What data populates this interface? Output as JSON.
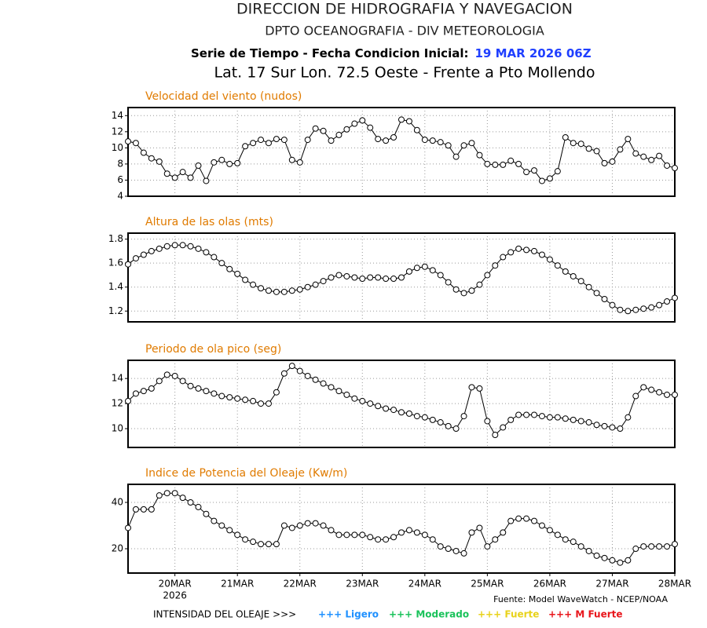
{
  "header": {
    "line1": "DIRECCION DE HIDROGRAFIA Y NAVEGACION",
    "line2": "DPTO OCEANOGRAFIA - DIV METEOROLOGIA",
    "line3_label": "Serie de Tiempo - Fecha Condicion Inicial:",
    "line3_date": "19 MAR 2026 06Z",
    "line3_date_color": "#1f3fff",
    "line4": "Lat. 17 Sur  Lon. 72.5 Oeste - Frente a Pto Mollendo"
  },
  "chart_data": [
    {
      "type": "line",
      "title": "Velocidad del viento (nudos)",
      "title_color": "#e07b00",
      "color": "#000000",
      "grid": true,
      "ylim": [
        4,
        15
      ],
      "yticks": [
        4,
        6,
        8,
        10,
        12,
        14
      ],
      "values": [
        10.8,
        10.6,
        9.4,
        8.7,
        8.3,
        6.8,
        6.3,
        7.0,
        6.3,
        7.8,
        5.9,
        8.2,
        8.5,
        8.0,
        8.1,
        10.2,
        10.6,
        11.0,
        10.6,
        11.1,
        11.0,
        8.5,
        8.2,
        11.0,
        12.4,
        12.1,
        10.9,
        11.6,
        12.3,
        13.0,
        13.4,
        12.5,
        11.1,
        10.9,
        11.3,
        13.5,
        13.3,
        12.2,
        11.0,
        10.9,
        10.7,
        10.3,
        8.9,
        10.3,
        10.6,
        9.1,
        8.0,
        7.9,
        7.9,
        8.4,
        8.0,
        7.0,
        7.2,
        5.9,
        6.2,
        7.1,
        11.3,
        10.6,
        10.5,
        9.9,
        9.6,
        8.1,
        8.3,
        9.8,
        11.1,
        9.3,
        8.9,
        8.5,
        9.0,
        7.8,
        7.5
      ]
    },
    {
      "type": "line",
      "title": "Altura de las olas (mts)",
      "title_color": "#e07b00",
      "color": "#000000",
      "grid": true,
      "ylim": [
        1.11,
        1.85
      ],
      "yticks": [
        1.2,
        1.4,
        1.6,
        1.8
      ],
      "values": [
        1.59,
        1.64,
        1.67,
        1.7,
        1.72,
        1.74,
        1.75,
        1.75,
        1.74,
        1.72,
        1.69,
        1.65,
        1.6,
        1.55,
        1.51,
        1.46,
        1.42,
        1.39,
        1.37,
        1.36,
        1.36,
        1.37,
        1.38,
        1.4,
        1.42,
        1.45,
        1.48,
        1.5,
        1.49,
        1.48,
        1.47,
        1.48,
        1.48,
        1.47,
        1.47,
        1.48,
        1.53,
        1.56,
        1.57,
        1.54,
        1.5,
        1.44,
        1.38,
        1.35,
        1.37,
        1.42,
        1.5,
        1.58,
        1.65,
        1.69,
        1.72,
        1.71,
        1.7,
        1.67,
        1.63,
        1.58,
        1.53,
        1.49,
        1.45,
        1.4,
        1.35,
        1.3,
        1.25,
        1.21,
        1.2,
        1.21,
        1.22,
        1.23,
        1.25,
        1.28,
        1.31
      ]
    },
    {
      "type": "line",
      "title": "Periodo de ola pico (seg)",
      "title_color": "#e07b00",
      "color": "#000000",
      "grid": true,
      "ylim": [
        8.5,
        15.45
      ],
      "yticks": [
        10,
        12,
        14
      ],
      "values": [
        12.2,
        12.8,
        13.0,
        13.2,
        13.8,
        14.3,
        14.2,
        13.8,
        13.4,
        13.2,
        13.0,
        12.8,
        12.6,
        12.5,
        12.4,
        12.3,
        12.2,
        12.0,
        12.0,
        12.9,
        14.4,
        15.0,
        14.6,
        14.2,
        13.9,
        13.6,
        13.3,
        13.0,
        12.7,
        12.4,
        12.2,
        12.0,
        11.8,
        11.6,
        11.5,
        11.3,
        11.2,
        11.0,
        10.9,
        10.7,
        10.5,
        10.2,
        10.0,
        11.0,
        13.3,
        13.2,
        10.6,
        9.5,
        10.1,
        10.7,
        11.1,
        11.1,
        11.1,
        11.0,
        10.9,
        10.9,
        10.8,
        10.7,
        10.6,
        10.5,
        10.3,
        10.2,
        10.1,
        10.0,
        10.9,
        12.6,
        13.3,
        13.1,
        12.9,
        12.7,
        12.7
      ]
    },
    {
      "type": "line",
      "title": "Indice de Potencia del Oleaje (Kw/m)",
      "title_color": "#e07b00",
      "color": "#000000",
      "grid": true,
      "ylim": [
        9.5,
        47.8
      ],
      "yticks": [
        20,
        40
      ],
      "values": [
        29,
        37,
        37,
        37,
        43,
        44,
        44,
        42,
        40,
        38,
        35,
        32,
        30,
        28,
        26,
        24,
        23,
        22,
        22,
        22,
        30,
        29,
        30,
        31,
        31,
        30,
        28,
        26,
        26,
        26,
        26,
        25,
        24,
        24,
        25,
        27,
        28,
        27,
        26,
        24,
        21,
        20,
        19,
        18,
        27,
        29,
        21,
        24,
        27,
        32,
        33,
        33,
        32,
        30,
        28,
        26,
        24,
        23,
        21,
        19,
        17,
        16,
        15,
        14,
        15,
        20,
        21,
        21,
        21,
        21,
        22
      ],
      "categories": [
        null,
        null,
        null,
        null,
        null,
        null,
        "20MAR",
        null,
        null,
        null,
        null,
        null,
        null,
        null,
        "21MAR",
        null,
        null,
        null,
        null,
        null,
        null,
        null,
        "22MAR",
        null,
        null,
        null,
        null,
        null,
        null,
        null,
        "23MAR",
        null,
        null,
        null,
        null,
        null,
        null,
        null,
        "24MAR",
        null,
        null,
        null,
        null,
        null,
        null,
        null,
        "25MAR",
        null,
        null,
        null,
        null,
        null,
        null,
        null,
        "26MAR",
        null,
        null,
        null,
        null,
        null,
        null,
        null,
        "27MAR",
        null,
        null,
        null,
        null,
        null,
        null,
        null,
        "28MAR"
      ],
      "x_sublabel": "2026"
    }
  ],
  "footer": {
    "source": "Fuente: Model WaveWatch - NCEP/NOAA",
    "legend_title": "INTENSIDAD DEL OLEAJE >>>",
    "legend_items": [
      {
        "label": "+++ Ligero",
        "color": "#1e90ff"
      },
      {
        "label": "+++ Moderado",
        "color": "#19c25a"
      },
      {
        "label": "+++ Fuerte",
        "color": "#e8d21a"
      },
      {
        "label": "+++ M Fuerte",
        "color": "#e8141a"
      }
    ]
  }
}
